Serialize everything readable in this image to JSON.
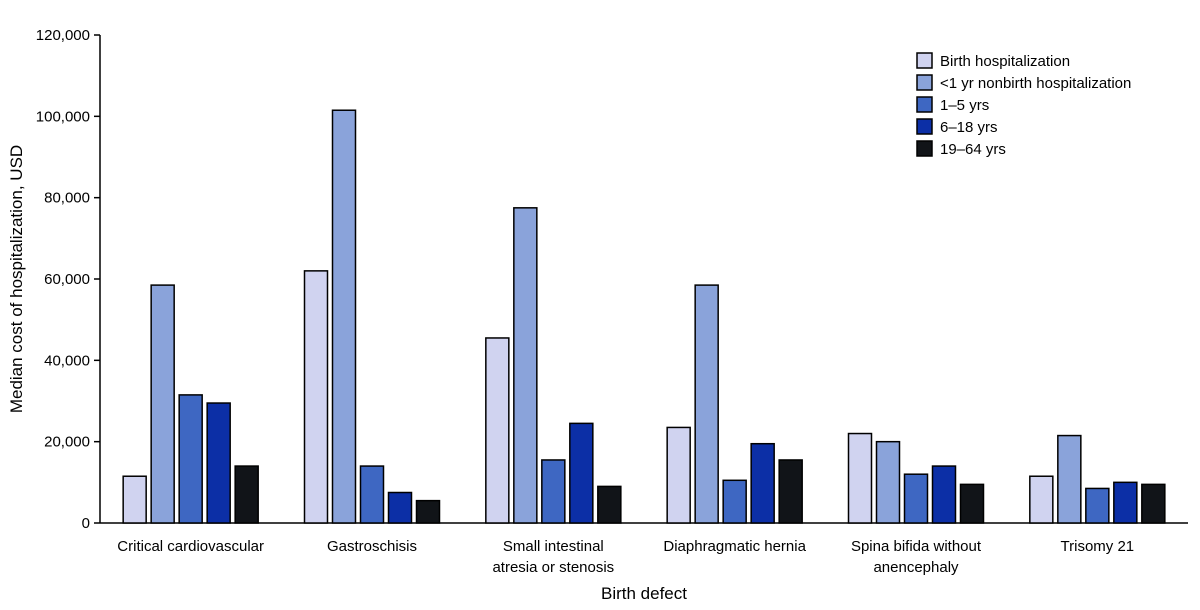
{
  "chart_data": {
    "type": "bar",
    "title": "",
    "xlabel": "Birth defect",
    "ylabel": "Median cost of hospitalization, USD",
    "ylim": [
      0,
      120000
    ],
    "yticks": [
      0,
      20000,
      40000,
      60000,
      80000,
      100000,
      120000
    ],
    "ytick_labels": [
      "0",
      "20,000",
      "40,000",
      "60,000",
      "80,000",
      "100,000",
      "120,000"
    ],
    "grid": false,
    "legend_position": "top-right",
    "categories": [
      [
        "Critical cardiovascular"
      ],
      [
        "Gastroschisis"
      ],
      [
        "Small intestinal",
        "atresia or stenosis"
      ],
      [
        "Diaphragmatic hernia"
      ],
      [
        "Spina bifida without",
        "anencephaly"
      ],
      [
        "Trisomy 21"
      ]
    ],
    "series": [
      {
        "name": "Birth hospitalization",
        "color": "#d0d3f0",
        "values": [
          11500,
          62000,
          45500,
          23500,
          22000,
          11500
        ]
      },
      {
        "name": "<1 yr nonbirth hospitalization",
        "color": "#8aa3da",
        "values": [
          58500,
          101500,
          77500,
          58500,
          20000,
          21500
        ]
      },
      {
        "name": "1–5 yrs",
        "color": "#3e67c2",
        "values": [
          31500,
          14000,
          15500,
          10500,
          12000,
          8500
        ]
      },
      {
        "name": "6–18 yrs",
        "color": "#0c2fa6",
        "values": [
          29500,
          7500,
          24500,
          19500,
          14000,
          10000
        ]
      },
      {
        "name": "19–64 yrs",
        "color": "#111418",
        "values": [
          14000,
          5500,
          9000,
          15500,
          9500,
          9500
        ]
      }
    ]
  }
}
